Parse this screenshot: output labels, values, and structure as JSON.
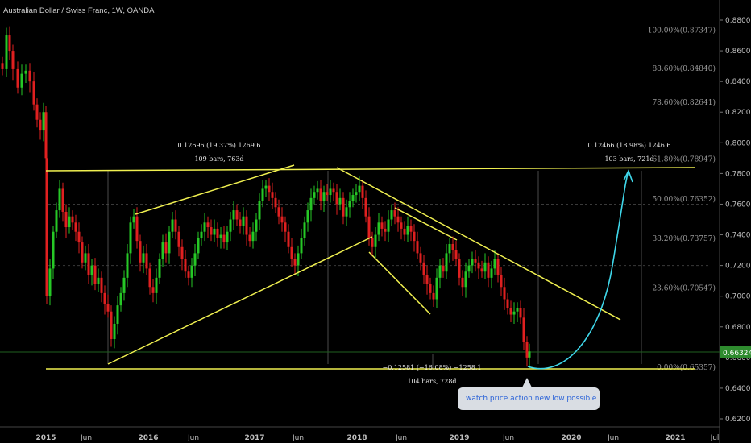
{
  "header": {
    "title": "Australian Dollar / Swiss Franc, 1W, OANDA"
  },
  "chart_data": {
    "type": "candlestick",
    "y_axis_ticks": [
      "0.88000",
      "0.86000",
      "0.84000",
      "0.82000",
      "0.80000",
      "0.78000",
      "0.76000",
      "0.74000",
      "0.72000",
      "0.70000",
      "0.68000",
      "0.66000",
      "0.64000",
      "0.62000"
    ],
    "ylim": [
      0.615,
      0.885
    ],
    "x_axis_ticks": [
      "2015",
      "Jun",
      "2016",
      "Jun",
      "2017",
      "Jun",
      "2018",
      "Jun",
      "2019",
      "Jun",
      "2020",
      "Jun",
      "2021",
      "Jul"
    ],
    "price_label": "0.66324",
    "fib_levels": [
      {
        "label": "100.00%(0.87347)",
        "value": 0.87347
      },
      {
        "label": "88.60%(0.84840)",
        "value": 0.8484
      },
      {
        "label": "78.60%(0.82641)",
        "value": 0.82641
      },
      {
        "label": "61.80%(0.78947)",
        "value": 0.78947
      },
      {
        "label": "50.00%(0.76352)",
        "value": 0.76352
      },
      {
        "label": "38.20%(0.73757)",
        "value": 0.73757
      },
      {
        "label": "23.60%(0.70547)",
        "value": 0.70547
      },
      {
        "label": "0.00%(0.65357)",
        "value": 0.65357
      }
    ],
    "measurements": [
      {
        "line1": "0.12696 (19.37%) 1269.6",
        "line2": "109 bars, 763d"
      },
      {
        "line1": "0.12466 (18.98%) 1246.6",
        "line2": "103 bars, 721d"
      },
      {
        "line1": "−0.12581 (−16.08%) −1258.1",
        "line2": "104 bars, 728d"
      }
    ],
    "annotation": "watch price action new low possible",
    "colors": {
      "up": "#26c826",
      "down": "#e02020",
      "trendline": "#f0f050",
      "projection": "#3fd7ea",
      "axis_text": "#bfbfbf",
      "price_tag": "#2e8b2e"
    }
  }
}
